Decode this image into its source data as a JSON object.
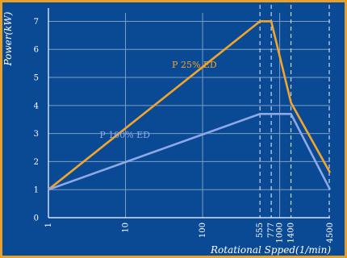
{
  "colors": {
    "background": "#0a4a94",
    "border": "#e6a12a",
    "p25": "#f2a52b",
    "p100": "#8fa8e6",
    "grid": "#7d9ec4",
    "text": "#ffffff"
  },
  "chart_data": {
    "type": "line",
    "xscale": "log",
    "xlim": [
      1,
      4500
    ],
    "ylim": [
      0,
      7.3
    ],
    "xlabel": "Rotational Spped(1/min)",
    "ylabel": "Power(kW)",
    "x_ticks": [
      "1",
      "10",
      "100",
      "555",
      "777",
      "1000",
      "1400",
      "4500"
    ],
    "y_ticks": [
      "0",
      "1",
      "2",
      "3",
      "4",
      "5",
      "6",
      "7"
    ],
    "grid": true,
    "dashed_x_lines": [
      555,
      777,
      1400,
      4500
    ],
    "series": [
      {
        "name": "P 25% ED",
        "color": "#f2a52b",
        "x": [
          1,
          555,
          777,
          1400,
          4500
        ],
        "y": [
          1,
          7,
          7,
          4.1,
          1.6
        ]
      },
      {
        "name": "P 100% ED",
        "color": "#8fa8e6",
        "x": [
          1,
          555,
          777,
          1400,
          4500
        ],
        "y": [
          1,
          3.7,
          3.7,
          3.7,
          1
        ]
      }
    ]
  }
}
